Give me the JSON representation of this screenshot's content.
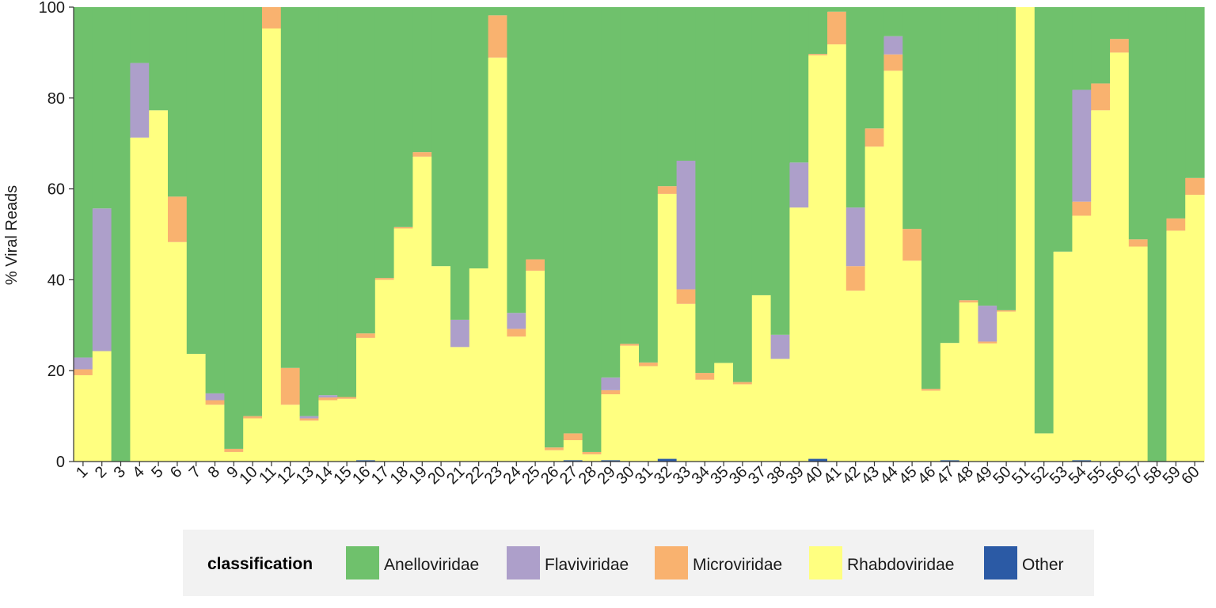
{
  "chart_data": {
    "type": "bar",
    "stacked": true,
    "title": "",
    "xlabel": "",
    "ylabel": "% Viral Reads",
    "ylim": [
      0,
      100
    ],
    "yticks": [
      0,
      20,
      40,
      60,
      80,
      100
    ],
    "grid": false,
    "legend_position": "bottom",
    "legend_title": "classification",
    "categories": [
      "1",
      "2",
      "3",
      "4",
      "5",
      "6",
      "7",
      "8",
      "9",
      "10",
      "11",
      "12",
      "13",
      "14",
      "15",
      "16",
      "17",
      "18",
      "19",
      "20",
      "21",
      "22",
      "23",
      "24",
      "25",
      "26",
      "27",
      "28",
      "29",
      "30",
      "31",
      "32",
      "33",
      "34",
      "35",
      "36",
      "37",
      "38",
      "39",
      "40",
      "41",
      "42",
      "43",
      "44",
      "45",
      "46",
      "47",
      "48",
      "49",
      "50",
      "51",
      "52",
      "53",
      "54",
      "55",
      "56",
      "57",
      "58",
      "59",
      "60"
    ],
    "series": [
      {
        "name": "Other",
        "color": "#2b5aa5",
        "values": [
          0,
          0,
          0,
          0,
          0,
          0,
          0,
          0,
          0,
          0,
          0,
          0,
          0,
          0,
          0,
          0.3,
          0,
          0,
          0,
          0,
          0,
          0,
          0,
          0,
          0,
          0,
          0.3,
          0,
          0.3,
          0,
          0,
          0.6,
          0,
          0,
          0,
          0,
          0,
          0,
          0,
          0.6,
          0,
          0,
          0,
          0,
          0,
          0,
          0.3,
          0,
          0,
          0,
          0,
          0,
          0,
          0.3,
          0,
          0,
          0,
          0,
          0,
          0
        ]
      },
      {
        "name": "Rhabdoviridae",
        "color": "#ffff80",
        "values": [
          19,
          24.3,
          0,
          71.3,
          77.3,
          48.3,
          23.7,
          12.5,
          2.1,
          9.5,
          95.3,
          12.5,
          9,
          13.5,
          13.8,
          26.9,
          40,
          51.3,
          67.1,
          43,
          25.2,
          42.5,
          88.9,
          27.5,
          42,
          2.5,
          4.4,
          1.6,
          14.5,
          25.5,
          21,
          58.3,
          34.7,
          18,
          21.7,
          17,
          36.6,
          22.6,
          55.9,
          88.8,
          91.8,
          37.6,
          69.3,
          86,
          44.2,
          15.6,
          25.8,
          35,
          26,
          33,
          100,
          6.2,
          46.2,
          53.8,
          77.3,
          90,
          47.3,
          0,
          50.8,
          58.7
        ]
      },
      {
        "name": "Microviridae",
        "color": "#f9b26f",
        "values": [
          1.3,
          0,
          0,
          0,
          0,
          10,
          0,
          1,
          0.7,
          0.5,
          4.7,
          8.1,
          0.5,
          0.6,
          0.4,
          1,
          0.4,
          0.3,
          1,
          0,
          0,
          0,
          9.3,
          1.7,
          2.5,
          0.6,
          1.5,
          0.5,
          0.9,
          0.4,
          0.8,
          1.7,
          3.2,
          1.5,
          0,
          0.5,
          0,
          0,
          0,
          0.3,
          7.2,
          5.4,
          4,
          3.6,
          7,
          0.4,
          0,
          0.5,
          0.4,
          0.3,
          0,
          0,
          0,
          3.1,
          5.9,
          3,
          1.6,
          0,
          2.7,
          3.7
        ]
      },
      {
        "name": "Flaviviridae",
        "color": "#ad9fca",
        "values": [
          2.6,
          31.4,
          0,
          16.4,
          0,
          0,
          0,
          1.5,
          0,
          0,
          0,
          0,
          0.5,
          0.5,
          0,
          0,
          0,
          0,
          0,
          0,
          6,
          0,
          0,
          3.5,
          0,
          0,
          0,
          0,
          2.8,
          0,
          0,
          0,
          28.3,
          0,
          0,
          0,
          0,
          5.3,
          9.9,
          0,
          0,
          12.9,
          0,
          4,
          0,
          0,
          0,
          0,
          7.9,
          0,
          0,
          0,
          0,
          24.6,
          0,
          0,
          0,
          0,
          0,
          0
        ]
      },
      {
        "name": "Anelloviridae",
        "color": "#6fc16c",
        "values": [
          77.1,
          44.3,
          100,
          12.3,
          22.7,
          41.7,
          76.3,
          85,
          97.2,
          90,
          0,
          79.4,
          90,
          85.4,
          85.8,
          71.8,
          59.6,
          48.4,
          31.9,
          57,
          68.8,
          57.5,
          1.8,
          67.3,
          55.5,
          96.9,
          93.8,
          97.9,
          81.5,
          74.1,
          78.2,
          39.4,
          33.8,
          80.5,
          78.3,
          82.5,
          63.4,
          72.1,
          34.2,
          10.3,
          1,
          44.1,
          26.7,
          6.4,
          48.8,
          84,
          73.9,
          64.5,
          65.7,
          66.7,
          0,
          93.8,
          53.8,
          18.2,
          16.8,
          7,
          51.1,
          100,
          46.5,
          37.6
        ]
      }
    ]
  },
  "legend": {
    "title": "classification",
    "items": [
      {
        "label": "Anelloviridae",
        "color": "#6fc16c"
      },
      {
        "label": "Flaviviridae",
        "color": "#ad9fca"
      },
      {
        "label": "Microviridae",
        "color": "#f9b26f"
      },
      {
        "label": "Rhabdoviridae",
        "color": "#ffff80"
      },
      {
        "label": "Other",
        "color": "#2b5aa5"
      }
    ]
  }
}
